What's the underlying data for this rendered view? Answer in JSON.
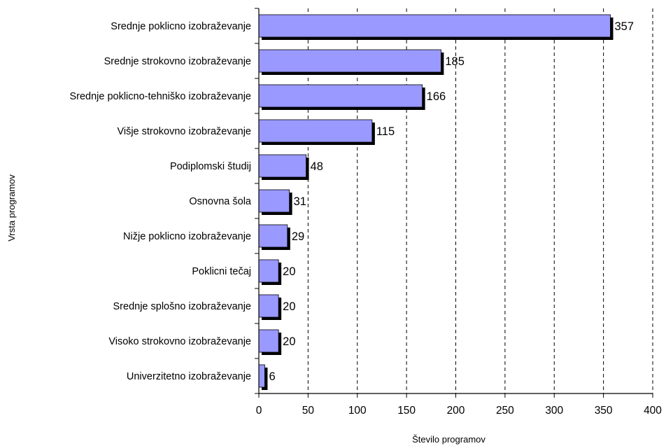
{
  "chart_data": {
    "type": "bar",
    "orientation": "horizontal",
    "categories": [
      "Srednje poklicno izobraževanje",
      "Srednje strokovno izobraževanje",
      "Srednje poklicno-tehniško izobraževanje",
      "Višje strokovno izobraževanje",
      "Podiplomski študij",
      "Osnovna šola",
      "Nižje poklicno izobraževanje",
      "Poklicni tečaj",
      "Srednje splošno izobraževanje",
      "Visoko strokovno izobraževanje",
      "Univerzitetno izobraževanje"
    ],
    "values": [
      357,
      185,
      166,
      115,
      48,
      31,
      29,
      20,
      20,
      20,
      6
    ],
    "xlabel": "Število programov",
    "ylabel": "Vrsta programov",
    "xlim": [
      0,
      400
    ],
    "xticks": [
      0,
      50,
      100,
      150,
      200,
      250,
      300,
      350,
      400
    ],
    "grid": "vertical dashed",
    "legend": "none",
    "colors": {
      "bar": "#9999ff",
      "shadow": "#000000",
      "grid": "#000000",
      "axis": "#000000"
    }
  }
}
